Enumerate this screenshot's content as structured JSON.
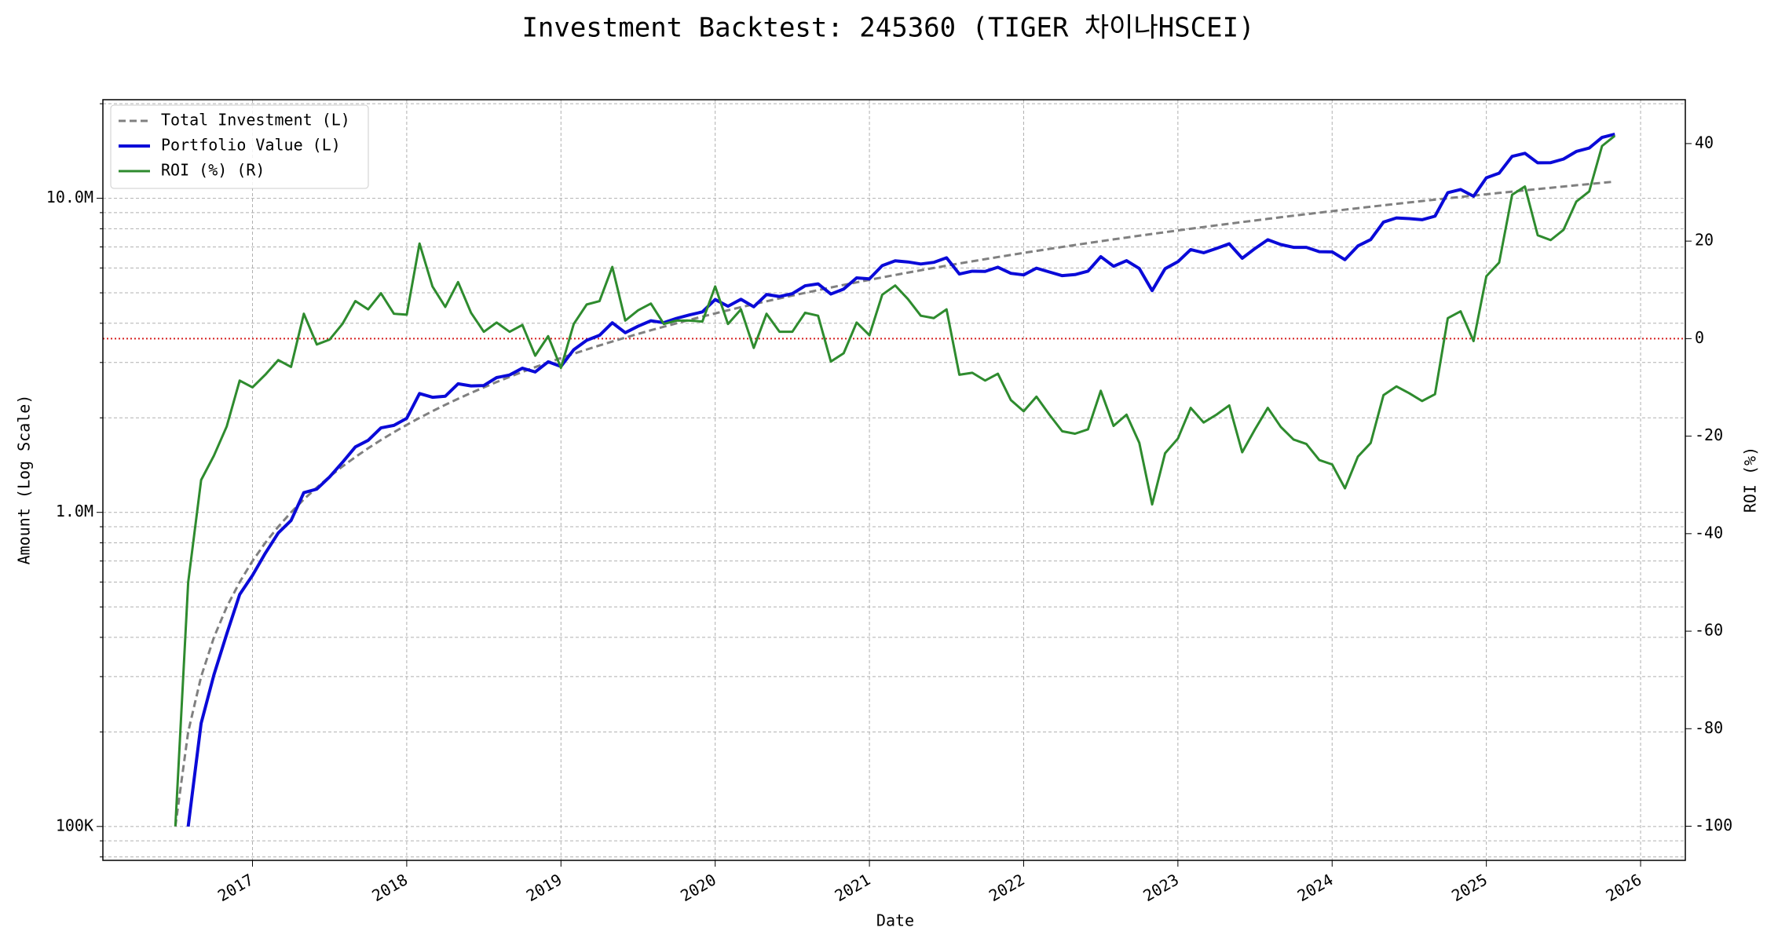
{
  "chart_data": {
    "type": "line",
    "title": "Investment Backtest: 245360 (TIGER 차이나HSCEI)",
    "xlabel": "Date",
    "ylabel": "Amount (Log Scale)",
    "y2label": "ROI (%)",
    "ylabel_color": "#0a0ad8",
    "y2label_color": "#228b22",
    "ylog": true,
    "grid": true,
    "legend": "upper left",
    "xlim": [
      2016.03,
      2026.29
    ],
    "xticks": [
      2017,
      2018,
      2019,
      2020,
      2021,
      2022,
      2023,
      2024,
      2025,
      2026
    ],
    "ylim": [
      78000,
      20600000
    ],
    "yticks": [
      {
        "value": 100000,
        "label": "100K"
      },
      {
        "value": 1000000,
        "label": "1.0M"
      },
      {
        "value": 10000000,
        "label": "10.0M"
      }
    ],
    "yminorticks": [
      80000,
      90000,
      200000,
      300000,
      400000,
      500000,
      600000,
      700000,
      800000,
      900000,
      2000000,
      3000000,
      4000000,
      5000000,
      6000000,
      7000000,
      8000000,
      9000000,
      20000000
    ],
    "y2lim": [
      -107,
      49
    ],
    "y2ticks": [
      -100,
      -80,
      -60,
      -40,
      -20,
      0,
      20,
      40
    ],
    "hline": {
      "value": 0,
      "axis": "y2",
      "color": "#d62020"
    },
    "x": [
      2016.5,
      2016.583,
      2016.667,
      2016.75,
      2016.833,
      2016.917,
      2017,
      2017.083,
      2017.167,
      2017.25,
      2017.333,
      2017.417,
      2017.5,
      2017.583,
      2017.667,
      2017.75,
      2017.833,
      2017.917,
      2018,
      2018.083,
      2018.167,
      2018.25,
      2018.333,
      2018.417,
      2018.5,
      2018.583,
      2018.667,
      2018.75,
      2018.833,
      2018.917,
      2019,
      2019.083,
      2019.167,
      2019.25,
      2019.333,
      2019.417,
      2019.5,
      2019.583,
      2019.667,
      2019.75,
      2019.833,
      2019.917,
      2020,
      2020.083,
      2020.167,
      2020.25,
      2020.333,
      2020.417,
      2020.5,
      2020.583,
      2020.667,
      2020.75,
      2020.833,
      2020.917,
      2021,
      2021.083,
      2021.167,
      2021.25,
      2021.333,
      2021.417,
      2021.5,
      2021.583,
      2021.667,
      2021.75,
      2021.833,
      2021.917,
      2022,
      2022.083,
      2022.167,
      2022.25,
      2022.333,
      2022.417,
      2022.5,
      2022.583,
      2022.667,
      2022.75,
      2022.833,
      2022.917,
      2023,
      2023.083,
      2023.167,
      2023.25,
      2023.333,
      2023.417,
      2023.5,
      2023.583,
      2023.667,
      2023.75,
      2023.833,
      2023.917,
      2024,
      2024.083,
      2024.167,
      2024.25,
      2024.333,
      2024.417,
      2024.5,
      2024.583,
      2024.667,
      2024.75,
      2024.833,
      2024.917,
      2025,
      2025.083,
      2025.167,
      2025.25,
      2025.333,
      2025.417,
      2025.5,
      2025.583,
      2025.667,
      2025.75,
      2025.833
    ],
    "series": [
      {
        "name": "Total Investment (L)",
        "color": "#808080",
        "dash": true,
        "width": 3,
        "axis": "y",
        "values": [
          100000,
          200000,
          300000,
          400000,
          500000,
          600000,
          700000,
          800000,
          900000,
          1000000,
          1100000,
          1200000,
          1300000,
          1400000,
          1500000,
          1600000,
          1700000,
          1800000,
          1900000,
          2000000,
          2100000,
          2200000,
          2300000,
          2400000,
          2500000,
          2600000,
          2700000,
          2800000,
          2900000,
          3000000,
          3100000,
          3200000,
          3300000,
          3400000,
          3500000,
          3600000,
          3700000,
          3800000,
          3900000,
          4000000,
          4100000,
          4200000,
          4300000,
          4400000,
          4500000,
          4600000,
          4700000,
          4800000,
          4900000,
          5000000,
          5100000,
          5200000,
          5300000,
          5400000,
          5500000,
          5600000,
          5700000,
          5800000,
          5900000,
          6000000,
          6100000,
          6200000,
          6300000,
          6400000,
          6500000,
          6600000,
          6700000,
          6800000,
          6900000,
          7000000,
          7100000,
          7200000,
          7300000,
          7400000,
          7500000,
          7600000,
          7700000,
          7800000,
          7900000,
          8000000,
          8100000,
          8200000,
          8300000,
          8400000,
          8500000,
          8600000,
          8700000,
          8800000,
          8900000,
          9000000,
          9100000,
          9200000,
          9300000,
          9400000,
          9500000,
          9600000,
          9700000,
          9800000,
          9900000,
          10000000,
          10100000,
          10200000,
          10300000,
          10400000,
          10500000,
          10600000,
          10700000,
          10800000,
          10900000,
          11000000,
          11100000,
          11200000,
          11300000
        ]
      },
      {
        "name": "Portfolio Value (L)",
        "color": "#0a0ad8",
        "dash": false,
        "width": 4,
        "axis": "y",
        "values": [
          null,
          100000,
          213000,
          304000,
          410000,
          548000,
          630000,
          741000,
          860000,
          942000,
          1156000,
          1186000,
          1297000,
          1442000,
          1616000,
          1696000,
          1858000,
          1892000,
          1993000,
          2390000,
          2325000,
          2343000,
          2567000,
          2527000,
          2535000,
          2686000,
          2738000,
          2878000,
          2799000,
          3015000,
          2914000,
          3296000,
          3531000,
          3662000,
          4015000,
          3733000,
          3915000,
          4074000,
          4017000,
          4148000,
          4252000,
          4347000,
          4760000,
          4532000,
          4770000,
          4513000,
          4940000,
          4867000,
          4969000,
          5265000,
          5340000,
          4956000,
          5141000,
          5578000,
          5539000,
          6104000,
          6321000,
          6270000,
          6177000,
          6252000,
          6466000,
          5741000,
          5859000,
          5850000,
          6032000,
          5768000,
          5702000,
          5991000,
          5824000,
          5670000,
          5716000,
          5861000,
          6519000,
          6075000,
          6330000,
          5974000,
          5082000,
          5967000,
          6281000,
          6864000,
          6707000,
          6921000,
          7163000,
          6443000,
          6919000,
          7379000,
          7125000,
          6978000,
          6978000,
          6759000,
          6752000,
          6376000,
          7049000,
          7388000,
          8398000,
          8659000,
          8614000,
          8546000,
          8771000,
          10420000,
          10666000,
          10149000,
          11618000,
          12022000,
          13598000,
          13907000,
          12968000,
          12982000,
          13331000,
          14091000,
          14452000,
          15624000,
          16001000
        ]
      },
      {
        "name": "ROI (%) (R)",
        "color": "#2e8b2e",
        "dash": false,
        "width": 3,
        "axis": "y2",
        "values": [
          -100,
          -50,
          -29,
          -24,
          -18,
          -8.6,
          -10,
          -7.4,
          -4.4,
          -5.8,
          5.1,
          -1.2,
          -0.2,
          3,
          7.7,
          6,
          9.3,
          5.1,
          4.9,
          19.5,
          10.7,
          6.5,
          11.6,
          5.3,
          1.4,
          3.3,
          1.4,
          2.8,
          -3.5,
          0.5,
          -6,
          3,
          7,
          7.7,
          14.7,
          3.7,
          5.8,
          7.2,
          3,
          3.7,
          3.7,
          3.5,
          10.7,
          3,
          6,
          -1.9,
          5.1,
          1.4,
          1.4,
          5.3,
          4.7,
          -4.7,
          -3,
          3.3,
          0.7,
          9,
          10.9,
          8.1,
          4.7,
          4.2,
          6,
          -7.4,
          -7,
          -8.6,
          -7.2,
          -12.6,
          -14.9,
          -11.9,
          -15.6,
          -19,
          -19.5,
          -18.6,
          -10.7,
          -17.9,
          -15.6,
          -21.4,
          -34,
          -23.5,
          -20.5,
          -14.2,
          -17.2,
          -15.6,
          -13.7,
          -23.3,
          -18.6,
          -14.2,
          -18.1,
          -20.7,
          -21.6,
          -24.9,
          -25.8,
          -30.7,
          -24.2,
          -21.4,
          -11.6,
          -9.8,
          -11.2,
          -12.8,
          -11.4,
          4.2,
          5.6,
          -0.5,
          12.8,
          15.6,
          29.5,
          31.2,
          21.2,
          20.2,
          22.3,
          28.1,
          30.2,
          39.5,
          41.6
        ]
      }
    ]
  }
}
